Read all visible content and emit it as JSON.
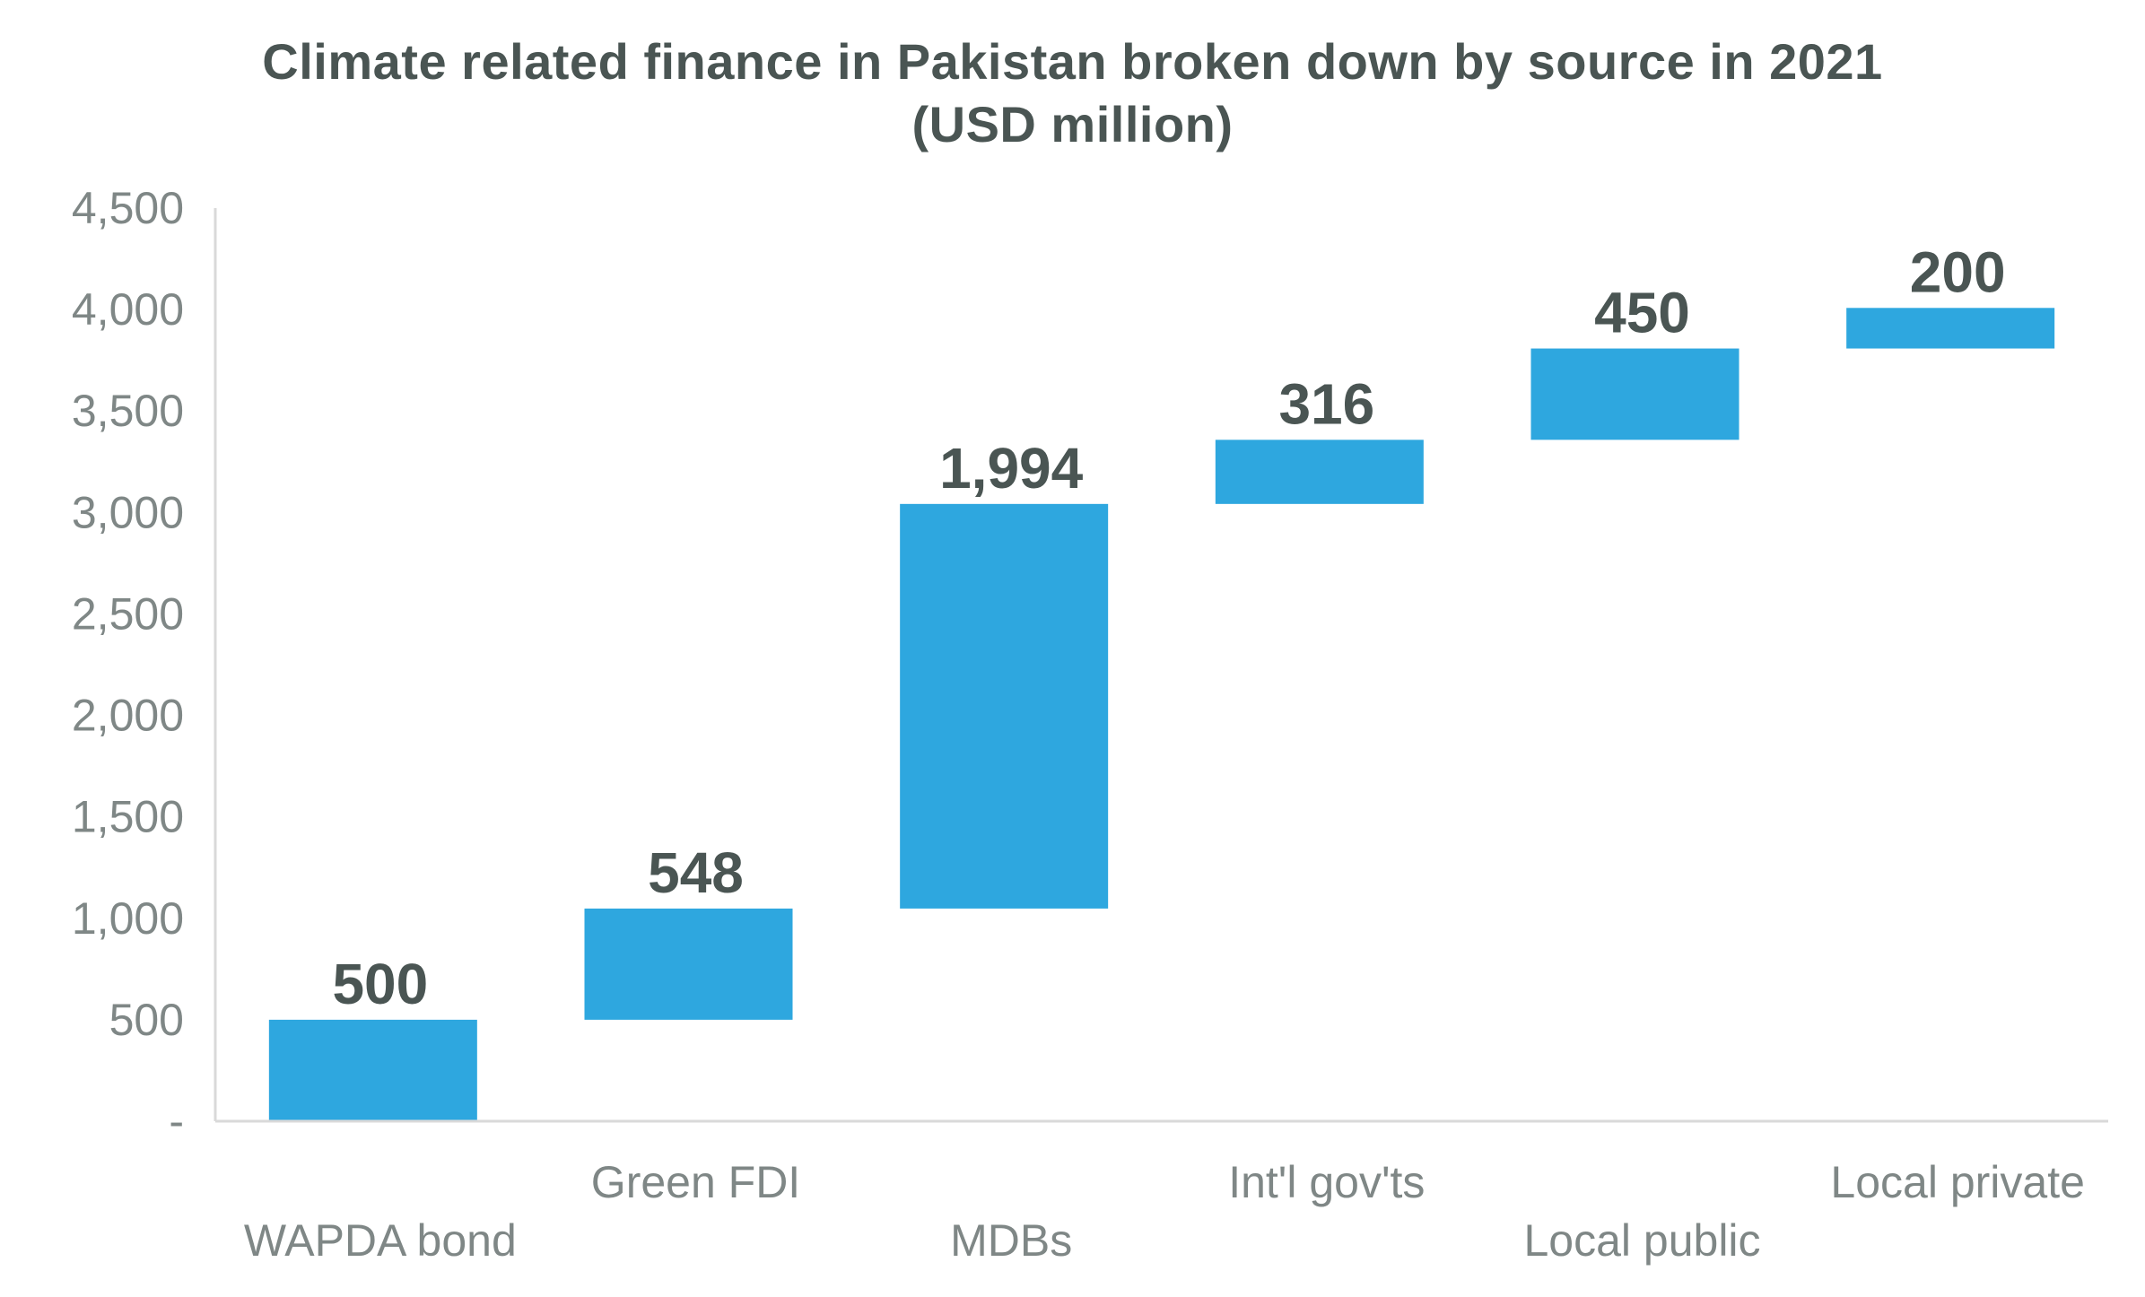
{
  "chart_data": {
    "type": "bar",
    "subtype": "waterfall",
    "title_line1": "Climate related finance in Pakistan broken down by source in 2021",
    "title_line2": "(USD million)",
    "categories": [
      "WAPDA bond",
      "Green FDI",
      "MDBs",
      "Int'l gov'ts",
      "Local public",
      "Local private"
    ],
    "values": [
      500,
      548,
      1994,
      316,
      450,
      200
    ],
    "value_labels": [
      "500",
      "548",
      "1,994",
      "316",
      "450",
      "200"
    ],
    "ylim": [
      0,
      4500
    ],
    "yticks": [
      0,
      500,
      1000,
      1500,
      2000,
      2500,
      3000,
      3500,
      4000,
      4500
    ],
    "ytick_labels": [
      "-",
      "500",
      "1,000",
      "1,500",
      "2,000",
      "2,500",
      "3,000",
      "3,500",
      "4,000",
      "4,500"
    ],
    "grid": false,
    "bar_color": "#2ea7df",
    "axis_color": "#d9d9d9"
  }
}
